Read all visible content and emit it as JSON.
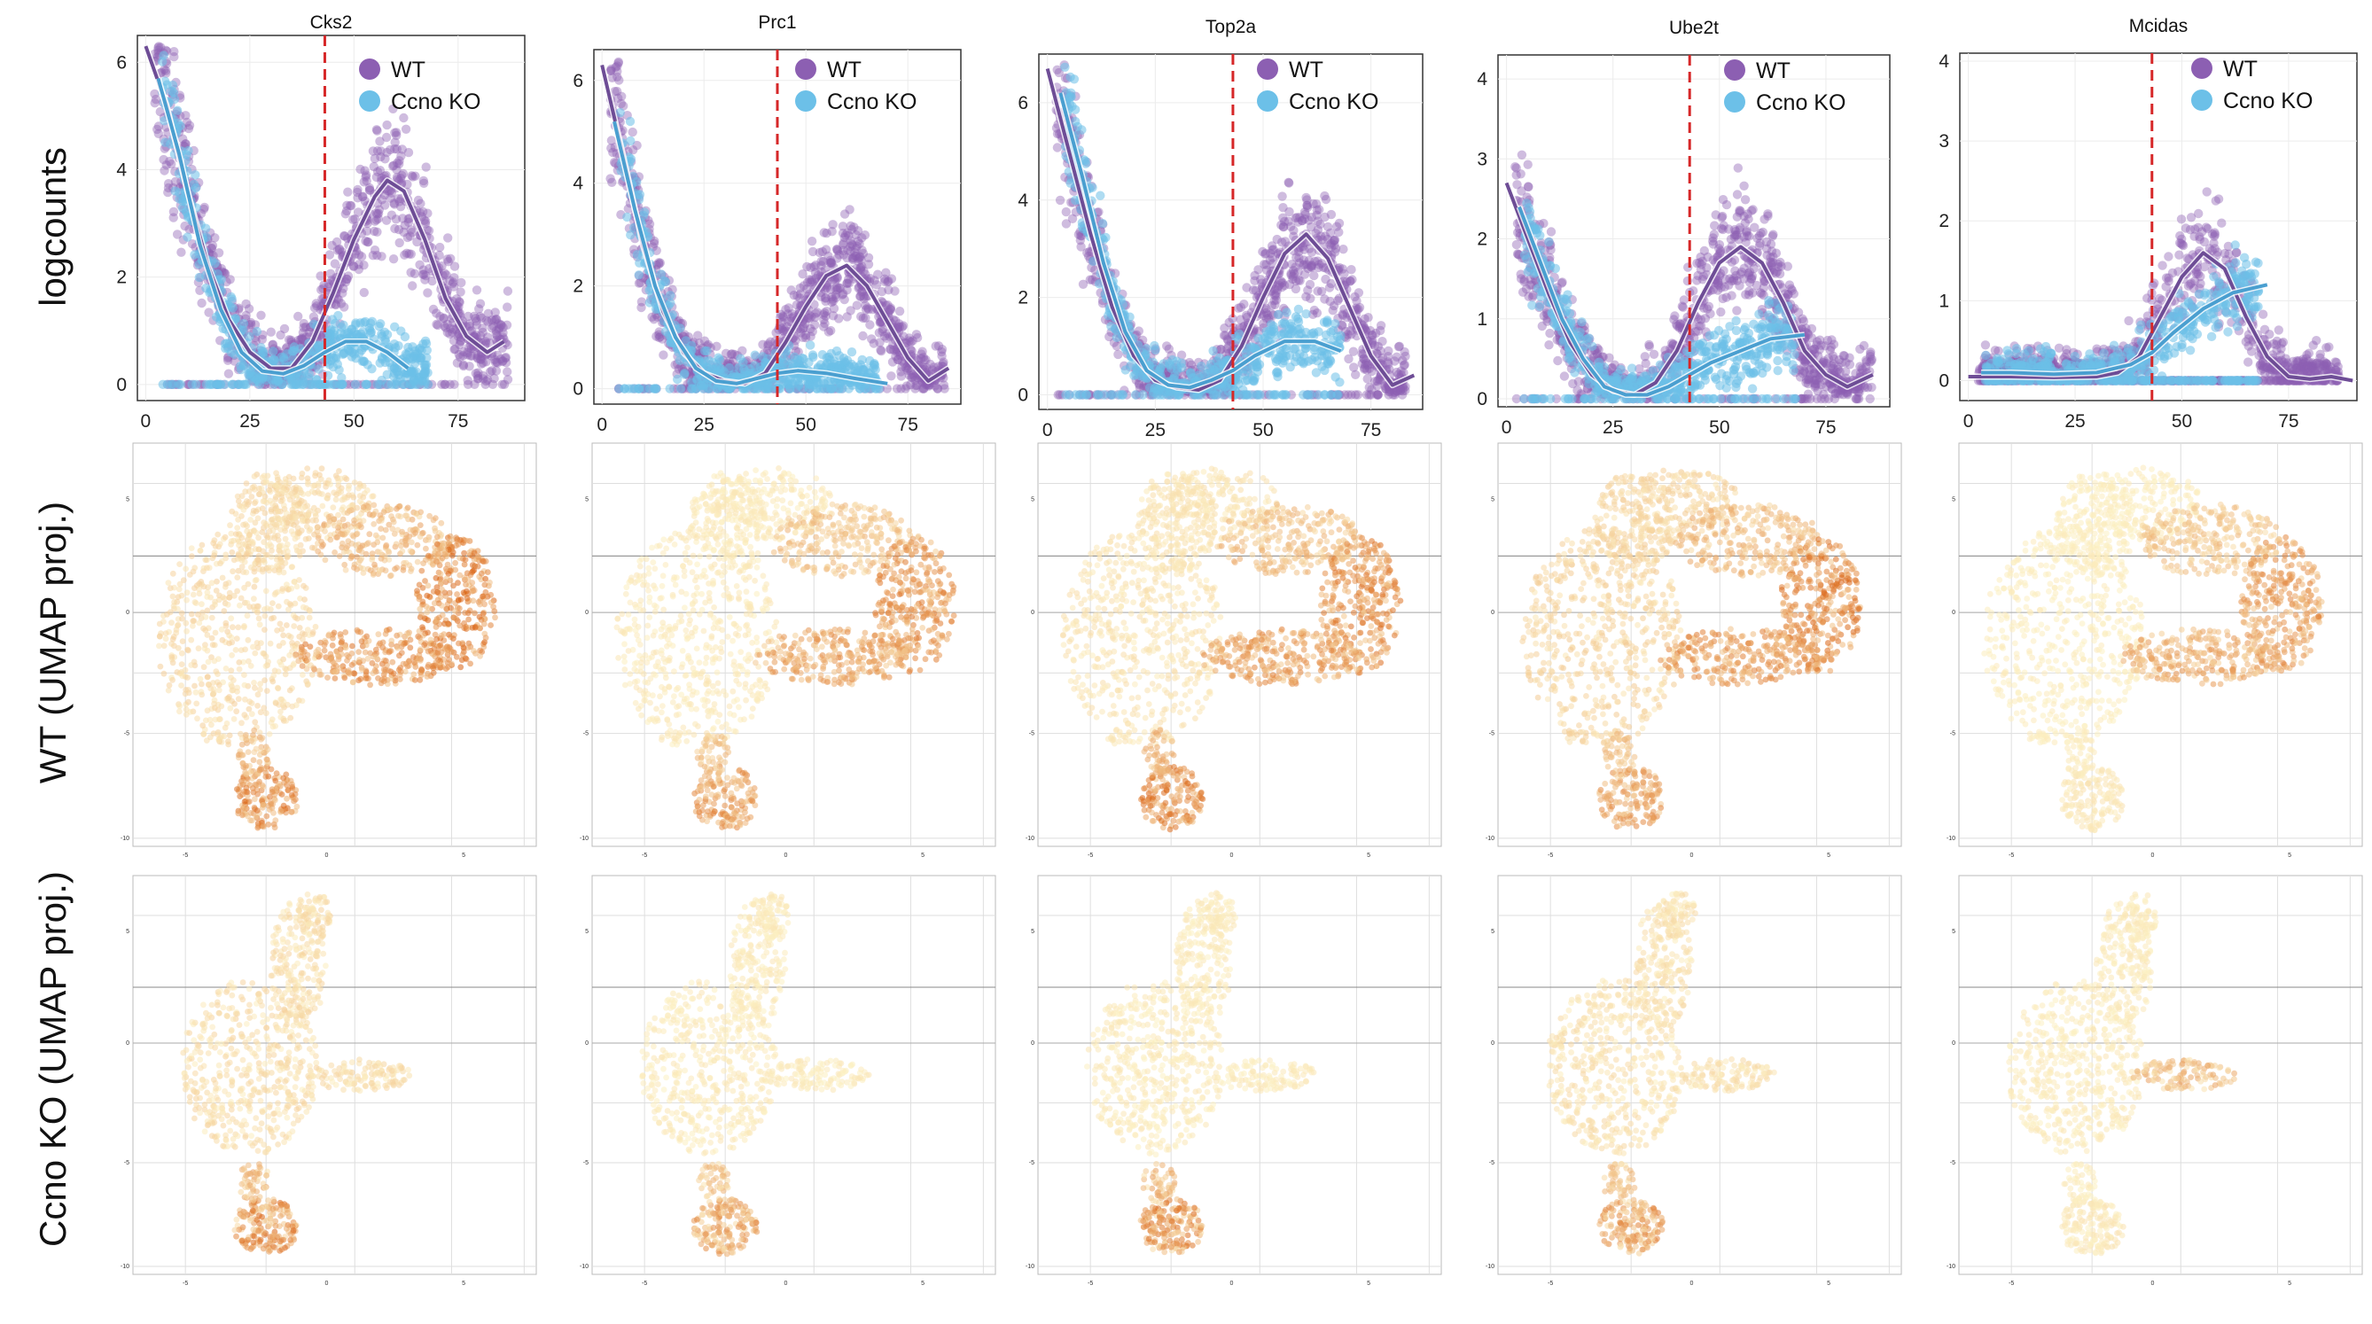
{
  "row_labels": [
    "logcounts",
    "WT (UMAP proj.)",
    "Ccno KO (UMAP proj.)"
  ],
  "colors": {
    "wt": "#8c5fb2",
    "ko": "#6cc0e8",
    "wt_line": "#6e4d96",
    "ko_line": "#4a9fd0",
    "vline": "#d62728",
    "expr_low": "#fdf3c6",
    "expr_high": "#d9600f",
    "grid": "#d6d6d6",
    "frame": "#333333"
  },
  "chart_data": [
    {
      "type": "scatter",
      "title": "Cks2",
      "xlabel": "",
      "ylabel": "logcounts",
      "xlim": [
        -2,
        91
      ],
      "ylim": [
        -0.3,
        6.5
      ],
      "xticks": [
        0,
        25,
        50,
        75
      ],
      "yticks": [
        0,
        2,
        4,
        6
      ],
      "vline_x": 43,
      "legend": "top-right",
      "series": [
        {
          "name": "WT",
          "color": "#8c5fb2",
          "fit": [
            [
              0,
              6.3
            ],
            [
              5,
              5.2
            ],
            [
              10,
              3.6
            ],
            [
              15,
              2.2
            ],
            [
              20,
              1.2
            ],
            [
              25,
              0.6
            ],
            [
              30,
              0.3
            ],
            [
              35,
              0.3
            ],
            [
              40,
              0.8
            ],
            [
              45,
              1.7
            ],
            [
              50,
              2.7
            ],
            [
              55,
              3.5
            ],
            [
              58,
              3.8
            ],
            [
              62,
              3.6
            ],
            [
              67,
              2.7
            ],
            [
              72,
              1.6
            ],
            [
              77,
              0.9
            ],
            [
              82,
              0.6
            ],
            [
              86,
              0.8
            ]
          ]
        },
        {
          "name": "Ccno KO",
          "color": "#6cc0e8",
          "fit": [
            [
              3,
              5.7
            ],
            [
              8,
              4.3
            ],
            [
              13,
              2.6
            ],
            [
              18,
              1.4
            ],
            [
              23,
              0.6
            ],
            [
              28,
              0.25
            ],
            [
              33,
              0.2
            ],
            [
              38,
              0.35
            ],
            [
              43,
              0.6
            ],
            [
              48,
              0.8
            ],
            [
              53,
              0.8
            ],
            [
              58,
              0.6
            ],
            [
              63,
              0.3
            ]
          ]
        }
      ]
    },
    {
      "type": "scatter",
      "title": "Prc1",
      "xlabel": "",
      "ylabel": "",
      "xlim": [
        -2,
        88
      ],
      "ylim": [
        -0.3,
        6.6
      ],
      "xticks": [
        0,
        25,
        50,
        75
      ],
      "yticks": [
        0,
        2,
        4,
        6
      ],
      "vline_x": 43,
      "legend": "top-right",
      "series": [
        {
          "name": "WT",
          "color": "#8c5fb2",
          "fit": [
            [
              0,
              6.3
            ],
            [
              5,
              4.6
            ],
            [
              10,
              2.8
            ],
            [
              15,
              1.5
            ],
            [
              20,
              0.7
            ],
            [
              25,
              0.3
            ],
            [
              30,
              0.15
            ],
            [
              35,
              0.1
            ],
            [
              40,
              0.3
            ],
            [
              45,
              0.9
            ],
            [
              50,
              1.6
            ],
            [
              55,
              2.2
            ],
            [
              60,
              2.4
            ],
            [
              65,
              2.0
            ],
            [
              70,
              1.3
            ],
            [
              75,
              0.6
            ],
            [
              80,
              0.15
            ],
            [
              85,
              0.4
            ]
          ]
        },
        {
          "name": "Ccno KO",
          "color": "#6cc0e8",
          "fit": [
            [
              3,
              5.2
            ],
            [
              8,
              3.5
            ],
            [
              13,
              2.0
            ],
            [
              18,
              1.0
            ],
            [
              23,
              0.4
            ],
            [
              28,
              0.15
            ],
            [
              33,
              0.1
            ],
            [
              38,
              0.2
            ],
            [
              43,
              0.3
            ],
            [
              48,
              0.35
            ],
            [
              55,
              0.3
            ],
            [
              62,
              0.2
            ],
            [
              70,
              0.1
            ]
          ]
        }
      ]
    },
    {
      "type": "scatter",
      "title": "Top2a",
      "xlabel": "",
      "ylabel": "",
      "xlim": [
        -2,
        87
      ],
      "ylim": [
        -0.3,
        7.0
      ],
      "xticks": [
        0,
        25,
        50,
        75
      ],
      "yticks": [
        0,
        2,
        4,
        6
      ],
      "vline_x": 43,
      "legend": "top-right",
      "series": [
        {
          "name": "WT",
          "color": "#8c5fb2",
          "fit": [
            [
              0,
              6.7
            ],
            [
              5,
              5.0
            ],
            [
              10,
              3.3
            ],
            [
              15,
              1.8
            ],
            [
              20,
              0.8
            ],
            [
              25,
              0.3
            ],
            [
              30,
              0.15
            ],
            [
              35,
              0.1
            ],
            [
              40,
              0.3
            ],
            [
              45,
              1.0
            ],
            [
              50,
              2.0
            ],
            [
              55,
              2.9
            ],
            [
              60,
              3.3
            ],
            [
              65,
              2.8
            ],
            [
              70,
              1.8
            ],
            [
              75,
              0.8
            ],
            [
              80,
              0.2
            ],
            [
              85,
              0.4
            ]
          ]
        },
        {
          "name": "Ccno KO",
          "color": "#6cc0e8",
          "fit": [
            [
              3,
              6.2
            ],
            [
              8,
              4.5
            ],
            [
              13,
              2.7
            ],
            [
              18,
              1.3
            ],
            [
              23,
              0.5
            ],
            [
              28,
              0.2
            ],
            [
              33,
              0.15
            ],
            [
              38,
              0.3
            ],
            [
              43,
              0.5
            ],
            [
              48,
              0.8
            ],
            [
              55,
              1.1
            ],
            [
              62,
              1.1
            ],
            [
              68,
              0.9
            ]
          ]
        }
      ]
    },
    {
      "type": "scatter",
      "title": "Ube2t",
      "xlabel": "",
      "ylabel": "",
      "xlim": [
        -2,
        90
      ],
      "ylim": [
        -0.1,
        4.3
      ],
      "xticks": [
        0,
        25,
        50,
        75
      ],
      "yticks": [
        0,
        1,
        2,
        3,
        4
      ],
      "vline_x": 43,
      "legend": "top-right",
      "series": [
        {
          "name": "WT",
          "color": "#8c5fb2",
          "fit": [
            [
              0,
              2.7
            ],
            [
              5,
              2.0
            ],
            [
              10,
              1.3
            ],
            [
              15,
              0.7
            ],
            [
              20,
              0.3
            ],
            [
              25,
              0.1
            ],
            [
              30,
              0.05
            ],
            [
              35,
              0.2
            ],
            [
              40,
              0.6
            ],
            [
              45,
              1.2
            ],
            [
              50,
              1.7
            ],
            [
              55,
              1.9
            ],
            [
              60,
              1.7
            ],
            [
              65,
              1.2
            ],
            [
              70,
              0.6
            ],
            [
              75,
              0.3
            ],
            [
              80,
              0.15
            ],
            [
              86,
              0.3
            ]
          ]
        },
        {
          "name": "Ccno KO",
          "color": "#6cc0e8",
          "fit": [
            [
              3,
              2.4
            ],
            [
              8,
              1.7
            ],
            [
              13,
              1.0
            ],
            [
              18,
              0.5
            ],
            [
              23,
              0.15
            ],
            [
              28,
              0.05
            ],
            [
              33,
              0.05
            ],
            [
              38,
              0.15
            ],
            [
              43,
              0.3
            ],
            [
              48,
              0.45
            ],
            [
              55,
              0.6
            ],
            [
              62,
              0.75
            ],
            [
              70,
              0.8
            ]
          ]
        }
      ]
    },
    {
      "type": "scatter",
      "title": "Mcidas",
      "xlabel": "",
      "ylabel": "",
      "xlim": [
        -2,
        91
      ],
      "ylim": [
        -0.25,
        4.1
      ],
      "xticks": [
        0,
        25,
        50,
        75
      ],
      "yticks": [
        0,
        1,
        2,
        3,
        4
      ],
      "vline_x": 43,
      "legend": "top-right",
      "series": [
        {
          "name": "WT",
          "color": "#8c5fb2",
          "fit": [
            [
              0,
              0.05
            ],
            [
              10,
              0.05
            ],
            [
              20,
              0.04
            ],
            [
              30,
              0.05
            ],
            [
              35,
              0.1
            ],
            [
              40,
              0.3
            ],
            [
              45,
              0.8
            ],
            [
              50,
              1.3
            ],
            [
              55,
              1.6
            ],
            [
              60,
              1.4
            ],
            [
              65,
              0.8
            ],
            [
              70,
              0.3
            ],
            [
              75,
              0.05
            ],
            [
              80,
              0.02
            ],
            [
              85,
              0.05
            ],
            [
              90,
              0.0
            ]
          ]
        },
        {
          "name": "Ccno KO",
          "color": "#6cc0e8",
          "fit": [
            [
              3,
              0.1
            ],
            [
              10,
              0.1
            ],
            [
              20,
              0.08
            ],
            [
              30,
              0.1
            ],
            [
              38,
              0.2
            ],
            [
              43,
              0.35
            ],
            [
              48,
              0.6
            ],
            [
              55,
              0.9
            ],
            [
              62,
              1.1
            ],
            [
              70,
              1.2
            ]
          ]
        }
      ]
    }
  ]
}
